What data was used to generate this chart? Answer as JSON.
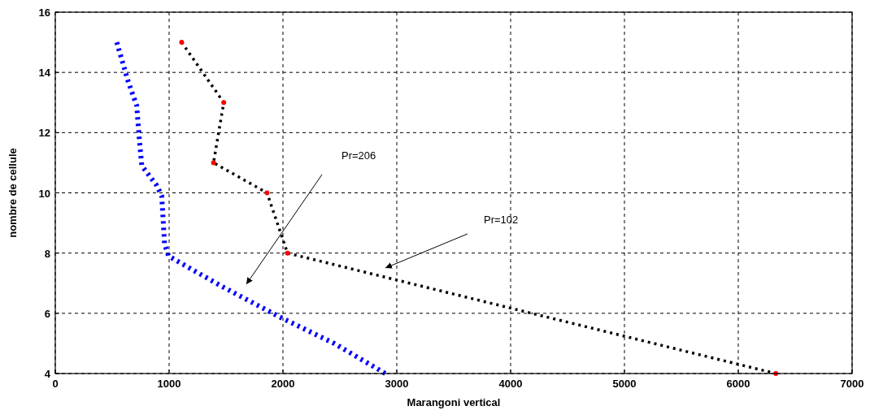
{
  "chart_data": {
    "type": "line",
    "xlabel": "Marangoni vertical",
    "ylabel": "nombre de cellule",
    "xlim": [
      0,
      7000
    ],
    "xticks": [
      0,
      1000,
      2000,
      3000,
      4000,
      5000,
      6000,
      7000
    ],
    "ylim": [
      4,
      16
    ],
    "yticks": [
      4,
      6,
      8,
      10,
      12,
      14,
      16
    ],
    "grid": true,
    "line_style": "dotted",
    "series": [
      {
        "color": "#0000ff",
        "marker": "none",
        "x": [
          540,
          640,
          715,
          740,
          760,
          890,
          935,
          960,
          995,
          1460,
          1960,
          2450,
          2900
        ],
        "values": [
          15,
          13.7,
          12.9,
          11.7,
          10.9,
          10.25,
          9.9,
          8.3,
          7.9,
          6.9,
          5.9,
          5,
          4
        ]
      },
      {
        "color": "#000000",
        "marker": "none",
        "x": [
          1110,
          1480,
          1390,
          1860,
          2040,
          6330
        ],
        "values": [
          15,
          13,
          11,
          10,
          8,
          4
        ]
      },
      {
        "type": "scatter",
        "color": "#ff0000",
        "marker": "circle",
        "x": [
          1110,
          1480,
          1390,
          1860,
          2040,
          6330
        ],
        "values": [
          15,
          13,
          11,
          10,
          8,
          4
        ]
      }
    ],
    "annotations": [
      "Pr=206",
      "Pr=102"
    ]
  }
}
